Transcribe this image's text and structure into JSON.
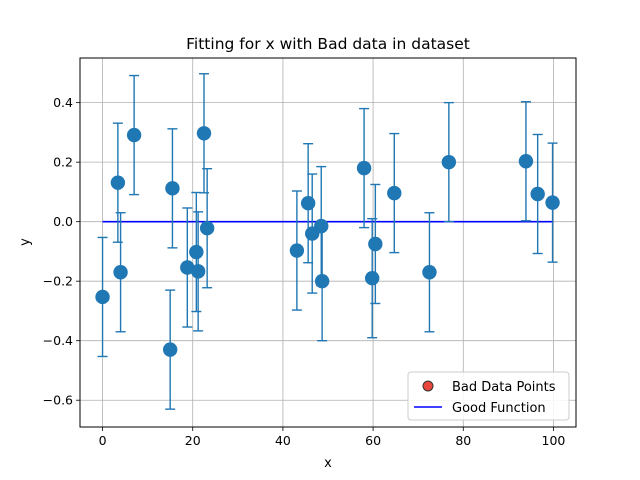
{
  "chart_data": {
    "type": "scatter",
    "title": "Fitting for x with Bad data in dataset",
    "xlabel": "x",
    "ylabel": "y",
    "xlim": [
      -5,
      105
    ],
    "ylim": [
      -0.69,
      0.55
    ],
    "xticks": [
      0,
      20,
      40,
      60,
      80,
      100
    ],
    "yticks": [
      -0.6,
      -0.4,
      -0.2,
      0.0,
      0.2,
      0.4
    ],
    "xtick_labels": [
      "0",
      "20",
      "40",
      "60",
      "80",
      "100"
    ],
    "ytick_labels": [
      "−0.6",
      "−0.4",
      "−0.2",
      "0.0",
      "0.2",
      "0.4"
    ],
    "grid": true,
    "legend_position": "bottom-right",
    "error_bar": 0.2,
    "series": [
      {
        "name": "",
        "kind": "errorbar-points",
        "color": "#1f77b4",
        "x": [
          0,
          3.4,
          4,
          7,
          15,
          15.5,
          18.8,
          20.8,
          21.2,
          22.5,
          23.2,
          43.1,
          45.6,
          46.5,
          48.5,
          48.7,
          58,
          59.8,
          60.5,
          64.7,
          72.5,
          76.8,
          93.9,
          96.5,
          99.8
        ],
        "y": [
          -0.253,
          0.131,
          -0.17,
          0.291,
          -0.43,
          0.112,
          -0.154,
          -0.102,
          -0.167,
          0.297,
          -0.022,
          -0.097,
          0.062,
          -0.04,
          -0.015,
          -0.2,
          0.18,
          -0.19,
          -0.075,
          0.096,
          -0.17,
          0.2,
          0.203,
          0.093,
          0.064
        ]
      },
      {
        "name": "Bad Data Points",
        "kind": "scatter",
        "color": "#e8463b",
        "edge_color": "#333333",
        "x": [],
        "y": []
      },
      {
        "name": "Good Function",
        "kind": "line",
        "color": "#0000ff",
        "x": [
          0,
          100
        ],
        "y": [
          0,
          0
        ]
      }
    ]
  }
}
